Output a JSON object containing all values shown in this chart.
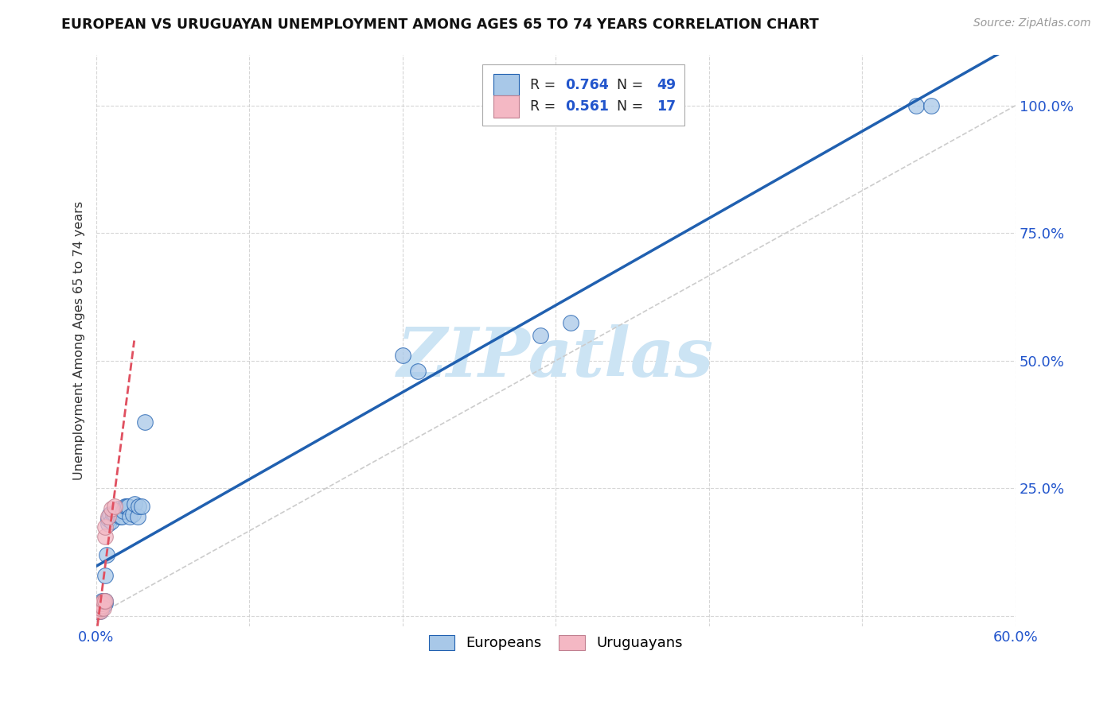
{
  "title": "EUROPEAN VS URUGUAYAN UNEMPLOYMENT AMONG AGES 65 TO 74 YEARS CORRELATION CHART",
  "source": "Source: ZipAtlas.com",
  "ylabel": "Unemployment Among Ages 65 to 74 years",
  "xlim": [
    0.0,
    0.6
  ],
  "ylim": [
    -0.02,
    1.1
  ],
  "blue_color": "#a8c8e8",
  "pink_color": "#f4b8c4",
  "regression_blue_color": "#2060b0",
  "regression_pink_color": "#e05060",
  "legend_r_color": "#2255cc",
  "watermark": "ZIPatlas",
  "watermark_color": "#cce4f4",
  "R_blue": 0.764,
  "N_blue": 49,
  "R_pink": 0.561,
  "N_pink": 17,
  "blue_x": [
    0.001,
    0.001,
    0.001,
    0.002,
    0.002,
    0.002,
    0.002,
    0.003,
    0.003,
    0.003,
    0.003,
    0.004,
    0.004,
    0.004,
    0.004,
    0.005,
    0.005,
    0.005,
    0.006,
    0.006,
    0.006,
    0.007,
    0.008,
    0.008,
    0.009,
    0.01,
    0.011,
    0.012,
    0.013,
    0.015,
    0.016,
    0.017,
    0.018,
    0.019,
    0.02,
    0.021,
    0.022,
    0.024,
    0.025,
    0.027,
    0.028,
    0.03,
    0.032,
    0.2,
    0.21,
    0.29,
    0.31,
    0.535,
    0.545
  ],
  "blue_y": [
    0.01,
    0.01,
    0.015,
    0.01,
    0.012,
    0.015,
    0.015,
    0.01,
    0.015,
    0.02,
    0.025,
    0.015,
    0.02,
    0.025,
    0.03,
    0.02,
    0.025,
    0.03,
    0.025,
    0.03,
    0.08,
    0.12,
    0.18,
    0.19,
    0.2,
    0.185,
    0.2,
    0.2,
    0.205,
    0.21,
    0.195,
    0.195,
    0.205,
    0.215,
    0.215,
    0.215,
    0.195,
    0.2,
    0.22,
    0.195,
    0.215,
    0.215,
    0.38,
    0.51,
    0.48,
    0.55,
    0.575,
    1.0,
    1.0
  ],
  "pink_x": [
    0.001,
    0.001,
    0.002,
    0.002,
    0.003,
    0.003,
    0.003,
    0.004,
    0.004,
    0.005,
    0.005,
    0.006,
    0.006,
    0.006,
    0.008,
    0.01,
    0.012
  ],
  "pink_y": [
    0.01,
    0.012,
    0.012,
    0.015,
    0.01,
    0.015,
    0.02,
    0.02,
    0.025,
    0.015,
    0.03,
    0.03,
    0.155,
    0.175,
    0.195,
    0.21,
    0.215
  ],
  "diag_line_x": [
    0.0,
    0.6
  ],
  "diag_line_y": [
    0.0,
    1.0
  ]
}
